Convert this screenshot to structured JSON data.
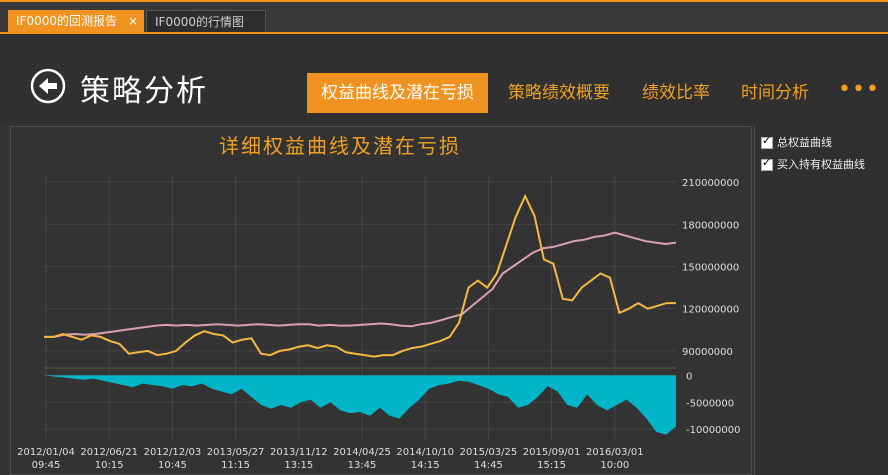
{
  "tabs": [
    {
      "label": "IF0000的回测报告",
      "close": "×"
    },
    {
      "label": "IF0000的行情图"
    }
  ],
  "header": {
    "title": "策略分析",
    "menu": [
      "权益曲线及潜在亏损",
      "策略绩效概要",
      "绩效比率",
      "时间分析"
    ],
    "more": "•••"
  },
  "side": {
    "options": [
      {
        "label": "总权益曲线",
        "checked": true
      },
      {
        "label": "买入持有权益曲线",
        "checked": true
      }
    ]
  },
  "chart_data": {
    "type": "line",
    "title": "详细权益曲线及潜在亏损",
    "colors": {
      "total_equity": "#d8a0b0",
      "buy_hold": "#f5b942",
      "drawdown": "#00b5c8"
    },
    "x_tick_labels": [
      [
        "2012/01/04",
        "09:45"
      ],
      [
        "2012/06/21",
        "10:15"
      ],
      [
        "2012/12/03",
        "10:45"
      ],
      [
        "2013/05/27",
        "11:15"
      ],
      [
        "2013/11/12",
        "13:15"
      ],
      [
        "2014/04/25",
        "13:45"
      ],
      [
        "2014/10/10",
        "14:15"
      ],
      [
        "2015/03/25",
        "14:45"
      ],
      [
        "2015/09/01",
        "15:15"
      ],
      [
        "2016/03/01",
        "10:00"
      ]
    ],
    "main": {
      "ylim": [
        80000000,
        215000000
      ],
      "yticks": [
        90000000,
        120000000,
        150000000,
        180000000,
        210000000
      ],
      "ytick_labels": [
        "90000000",
        "120000000",
        "150000000",
        "180000000",
        "210000000"
      ],
      "series": [
        {
          "key": "total_equity",
          "values": [
            100000000,
            100000000,
            101500000,
            102000000,
            101500000,
            102000000,
            103000000,
            104000000,
            105000000,
            106000000,
            107000000,
            108000000,
            108500000,
            108000000,
            108500000,
            108000000,
            108500000,
            109000000,
            108500000,
            108000000,
            108500000,
            109000000,
            108500000,
            108000000,
            108500000,
            109000000,
            109000000,
            108000000,
            108500000,
            108000000,
            108000000,
            108500000,
            109000000,
            109500000,
            109000000,
            108000000,
            107500000,
            109000000,
            110000000,
            112000000,
            114000000,
            116000000,
            122000000,
            128000000,
            134000000,
            145000000,
            150000000,
            155000000,
            160000000,
            163000000,
            164000000,
            166000000,
            168000000,
            169000000,
            171000000,
            172000000,
            174000000,
            172000000,
            170000000,
            168000000,
            167000000,
            166000000,
            167000000
          ]
        },
        {
          "key": "buy_hold",
          "values": [
            100000000,
            100000000,
            102000000,
            100000000,
            98000000,
            101000000,
            100000000,
            97000000,
            95000000,
            88000000,
            89000000,
            90000000,
            87000000,
            88000000,
            90000000,
            96000000,
            101000000,
            104000000,
            102000000,
            101000000,
            96000000,
            98000000,
            99000000,
            88000000,
            87000000,
            90000000,
            91000000,
            93000000,
            94000000,
            92000000,
            94000000,
            93000000,
            89000000,
            88000000,
            87000000,
            86000000,
            87000000,
            87000000,
            90000000,
            92000000,
            93000000,
            95000000,
            97000000,
            100000000,
            110000000,
            135000000,
            140000000,
            135000000,
            145000000,
            165000000,
            185000000,
            200000000,
            186000000,
            155000000,
            152000000,
            127000000,
            126000000,
            135000000,
            140000000,
            145000000,
            142000000,
            117000000,
            120000000,
            124000000,
            120000000,
            122000000,
            124000000,
            124000000
          ]
        }
      ]
    },
    "drawdown": {
      "ylim": [
        -12000000,
        1000000
      ],
      "yticks": [
        0,
        -5000000,
        -10000000
      ],
      "ytick_labels": [
        "0",
        "-5000000",
        "-10000000"
      ],
      "values": [
        0,
        -200000,
        -400000,
        -600000,
        -800000,
        -600000,
        -1000000,
        -1400000,
        -1800000,
        -2200000,
        -1500000,
        -1800000,
        -2000000,
        -2500000,
        -1800000,
        -2000000,
        -1500000,
        -2500000,
        -3000000,
        -3500000,
        -2500000,
        -4000000,
        -5500000,
        -6200000,
        -5500000,
        -6000000,
        -5000000,
        -4500000,
        -6000000,
        -5000000,
        -6500000,
        -7000000,
        -6800000,
        -7500000,
        -6000000,
        -7500000,
        -8000000,
        -6000000,
        -4500000,
        -2500000,
        -1800000,
        -1500000,
        -1000000,
        -1200000,
        -1800000,
        -2500000,
        -3500000,
        -4000000,
        -6000000,
        -5500000,
        -4000000,
        -2000000,
        -3000000,
        -5500000,
        -6000000,
        -3500000,
        -5500000,
        -6500000,
        -5500000,
        -4500000,
        -6000000,
        -8000000,
        -10500000,
        -11000000,
        -9500000
      ]
    }
  }
}
